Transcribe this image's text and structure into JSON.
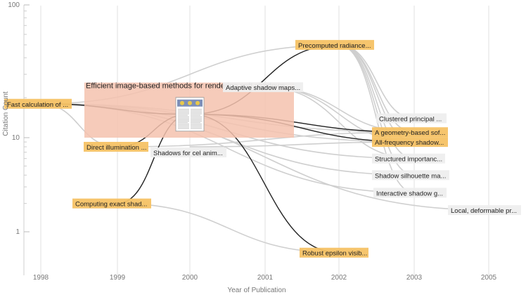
{
  "chart_data": {
    "type": "scatter",
    "xlabel": "Year of Publication",
    "ylabel": "Citation Count",
    "xticks": [
      1998,
      1999,
      2000,
      2001,
      2002,
      2003,
      2005
    ],
    "yticks": [
      1,
      10,
      100
    ],
    "yscale": "log",
    "ylim": [
      0.5,
      100
    ],
    "grid": true,
    "focus": {
      "title": "Efficient image-based methods for rendering soft shadows",
      "x": 2000,
      "y": 15
    },
    "papers": [
      {
        "id": "fast",
        "label": "Fast calculation of ...",
        "x": 1998,
        "y": 18,
        "kind": "cited"
      },
      {
        "id": "direct",
        "label": "Direct illumination ...",
        "x": 1999,
        "y": 8,
        "kind": "cited"
      },
      {
        "id": "exact",
        "label": "Computing exact shad...",
        "x": 1999,
        "y": 2,
        "kind": "cited"
      },
      {
        "id": "celanim",
        "label": "Shadows for cel anim...",
        "x": 2000,
        "y": 8,
        "kind": "other"
      },
      {
        "id": "adaptive",
        "label": "Adaptive shadow maps...",
        "x": 2001,
        "y": 24,
        "kind": "other"
      },
      {
        "id": "precomp",
        "label": "Precomputed radiance...",
        "x": 2002,
        "y": 50,
        "kind": "citing"
      },
      {
        "id": "robust",
        "label": "Robust epsilon visib...",
        "x": 2002,
        "y": 0.6,
        "kind": "citing"
      },
      {
        "id": "clustered",
        "label": "Clustered principal ...",
        "x": 2003,
        "y": 14,
        "kind": "other"
      },
      {
        "id": "geometry",
        "label": "A geometry-based sof...",
        "x": 2003,
        "y": 11,
        "kind": "citing"
      },
      {
        "id": "allfreq",
        "label": "All-frequency shadow...",
        "x": 2003,
        "y": 9,
        "kind": "citing"
      },
      {
        "id": "struct",
        "label": "Structured importanc...",
        "x": 2003,
        "y": 6,
        "kind": "other"
      },
      {
        "id": "silhouette",
        "label": "Shadow silhouette ma...",
        "x": 2003,
        "y": 4,
        "kind": "other"
      },
      {
        "id": "interactive",
        "label": "Interactive shadow g...",
        "x": 2003,
        "y": 2.6,
        "kind": "other"
      },
      {
        "id": "local",
        "label": "Local, deformable pr...",
        "x": 2005,
        "y": 1.7,
        "kind": "other"
      }
    ]
  }
}
